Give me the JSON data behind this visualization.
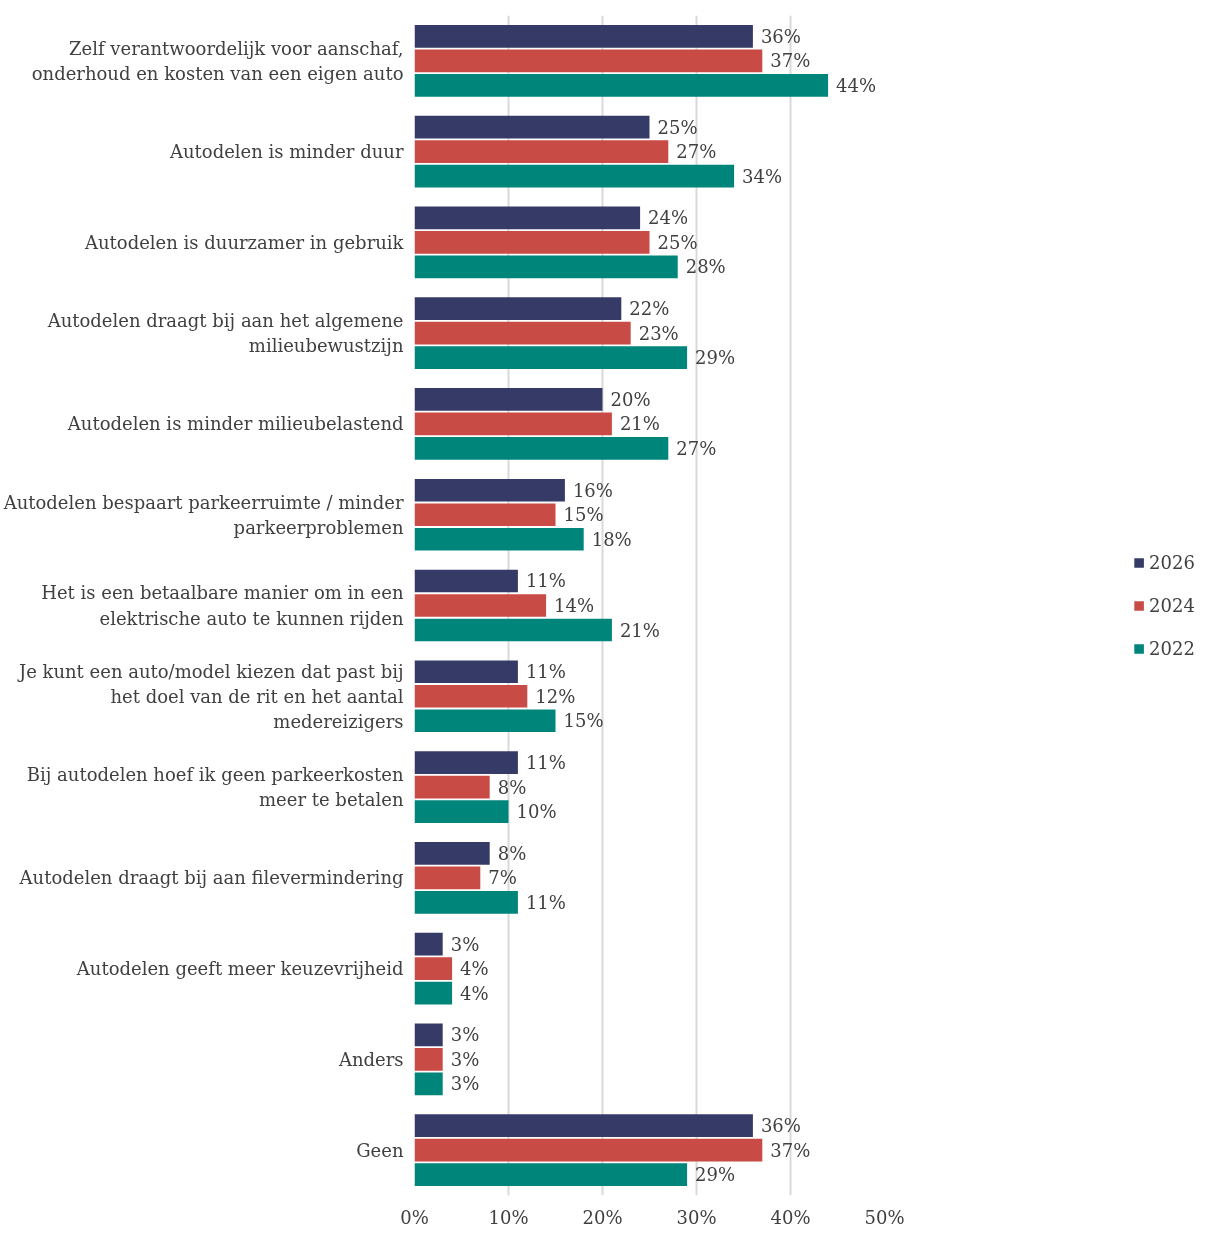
{
  "chart_data": {
    "type": "bar",
    "orientation": "horizontal",
    "categories": [
      "Zelf verantwoordelijk voor aanschaf, onderhoud en kosten van een eigen auto",
      "Autodelen is minder duur",
      "Autodelen is duurzamer in gebruik",
      "Autodelen draagt bij aan het algemene milieubewustzijn",
      "Autodelen is minder milieubelastend",
      "Autodelen bespaart parkeerruimte / minder parkeerproblemen",
      "Het is een betaalbare manier om in een elektrische auto te kunnen rijden",
      "Je kunt een auto/model kiezen dat past bij het doel van de rit en het aantal medereizigers",
      "Bij autodelen hoef ik geen parkeerkosten meer te betalen",
      "Autodelen draagt bij aan filevermindering",
      "Autodelen geeft meer keuzevrijheid",
      "Anders",
      "Geen"
    ],
    "series": [
      {
        "name": "2026",
        "color": "#363a66",
        "values": [
          36,
          25,
          24,
          22,
          20,
          16,
          11,
          11,
          11,
          8,
          3,
          3,
          36
        ],
        "value_labels": [
          "36%",
          "25%",
          "24%",
          "22%",
          "20%",
          "16%",
          "11%",
          "11%",
          "11%",
          "8%",
          "3%",
          "3%",
          "36%"
        ]
      },
      {
        "name": "2024",
        "color": "#c84c45",
        "values": [
          37,
          27,
          25,
          23,
          21,
          15,
          14,
          12,
          8,
          7,
          4,
          3,
          37
        ],
        "value_labels": [
          "37%",
          "27%",
          "25%",
          "23%",
          "21%",
          "15%",
          "14%",
          "12%",
          "8%",
          "7%",
          "4%",
          "3%",
          "37%"
        ]
      },
      {
        "name": "2022",
        "color": "#00857a",
        "values": [
          44,
          34,
          28,
          29,
          27,
          18,
          21,
          15,
          10,
          11,
          4,
          3,
          29
        ],
        "value_labels": [
          "44%",
          "34%",
          "28%",
          "29%",
          "27%",
          "18%",
          "21%",
          "15%",
          "10%",
          "11%",
          "4%",
          "3%",
          "29%"
        ]
      }
    ],
    "xlim": [
      0,
      50
    ],
    "xticks": [
      {
        "value": 0,
        "label": "0%"
      },
      {
        "value": 10,
        "label": "10%"
      },
      {
        "value": 20,
        "label": "20%"
      },
      {
        "value": 30,
        "label": "30%"
      },
      {
        "value": 40,
        "label": "40%"
      },
      {
        "value": 50,
        "label": "50%"
      }
    ],
    "grid": "x",
    "legend": "right"
  }
}
